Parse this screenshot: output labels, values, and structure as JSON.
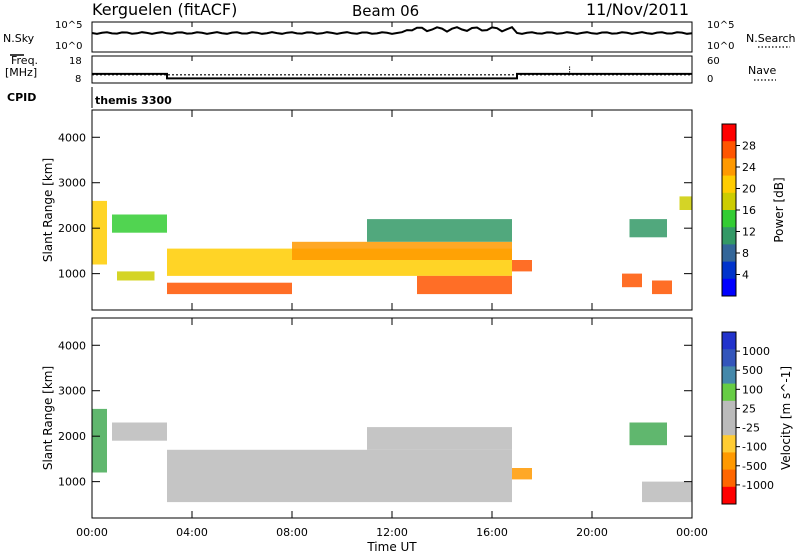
{
  "header": {
    "station": "Kerguelen (fitACF)",
    "beam": "Beam 06",
    "date": "11/Nov/2011"
  },
  "noise_panel": {
    "left_label": "N.Sky",
    "right_label": "N.Search",
    "left_ticks": [
      "10^5",
      "10^0"
    ],
    "right_ticks": [
      "10^5",
      "10^0"
    ]
  },
  "freq_panel": {
    "left_label_1": "Freq.",
    "left_label_2": "[MHz]",
    "right_label": "Nave",
    "left_ticks": [
      "18",
      "8"
    ],
    "right_ticks": [
      "60",
      "0"
    ],
    "freq_segments": [
      {
        "start": 0.0,
        "end": 3.0,
        "value": 12.5
      },
      {
        "start": 3.0,
        "end": 17.0,
        "value": 10.0
      },
      {
        "start": 17.0,
        "end": 24.0,
        "value": 12.5
      }
    ],
    "nave_level": 24
  },
  "cpid": {
    "label": "CPID",
    "value": "themis 3300"
  },
  "x_axis": {
    "title": "Time UT",
    "range_hours": [
      0,
      24
    ],
    "tick_labels": [
      "00:00",
      "04:00",
      "08:00",
      "12:00",
      "16:00",
      "20:00",
      "00:00"
    ]
  },
  "power_panel": {
    "ylabel": "Slant Range [km]",
    "yticks": [
      "1000",
      "2000",
      "3000",
      "4000"
    ],
    "colorbar_label": "Power [dB]",
    "colorbar_ticks": [
      "28",
      "24",
      "20",
      "16",
      "12",
      "8",
      "4"
    ],
    "colorbar_colors": [
      "#ff0000",
      "#ff5500",
      "#ff9900",
      "#ffcc00",
      "#cccc00",
      "#33cc33",
      "#339966",
      "#336699",
      "#0033cc",
      "#0000ff"
    ]
  },
  "velocity_panel": {
    "ylabel": "Slant Range [km]",
    "yticks": [
      "1000",
      "2000",
      "3000",
      "4000"
    ],
    "colorbar_label": "Velocity [m s^-1]",
    "colorbar_ticks": [
      "1000",
      "500",
      "100",
      "25",
      "-25",
      "-100",
      "-500",
      "-1000"
    ],
    "colorbar_colors": [
      "#2233cc",
      "#3355bb",
      "#4488aa",
      "#66cc44",
      "#bbbbbb",
      "#bbbbbb",
      "#ffcc33",
      "#ff9900",
      "#ff6600",
      "#ff0000"
    ]
  },
  "chart_data": {
    "type": "heatmap",
    "title": "Kerguelen (fitACF) Beam 06 11/Nov/2011",
    "xlabel": "Time UT",
    "ylabel": "Slant Range [km]",
    "xlim_hours": [
      0,
      24
    ],
    "ylim_km": [
      200,
      4600
    ],
    "power_regions": [
      {
        "t0": 0.0,
        "t1": 0.6,
        "r0": 1200,
        "r1": 2600,
        "power_db": 20
      },
      {
        "t0": 0.8,
        "t1": 3.0,
        "r0": 1900,
        "r1": 2300,
        "power_db": 16
      },
      {
        "t0": 1.0,
        "t1": 2.5,
        "r0": 850,
        "r1": 1050,
        "power_db": 18
      },
      {
        "t0": 3.0,
        "t1": 8.0,
        "r0": 550,
        "r1": 800,
        "power_db": 28
      },
      {
        "t0": 3.0,
        "t1": 16.8,
        "r0": 950,
        "r1": 1550,
        "power_db": 22
      },
      {
        "t0": 8.0,
        "t1": 16.8,
        "r0": 1300,
        "r1": 1700,
        "power_db": 24
      },
      {
        "t0": 11.0,
        "t1": 16.8,
        "r0": 1700,
        "r1": 2200,
        "power_db": 12
      },
      {
        "t0": 13.0,
        "t1": 16.8,
        "r0": 550,
        "r1": 950,
        "power_db": 28
      },
      {
        "t0": 16.8,
        "t1": 17.6,
        "r0": 1050,
        "r1": 1300,
        "power_db": 26
      },
      {
        "t0": 21.2,
        "t1": 22.0,
        "r0": 700,
        "r1": 1000,
        "power_db": 28
      },
      {
        "t0": 22.4,
        "t1": 23.2,
        "r0": 550,
        "r1": 850,
        "power_db": 28
      },
      {
        "t0": 21.5,
        "t1": 23.0,
        "r0": 1800,
        "r1": 2200,
        "power_db": 12
      },
      {
        "t0": 23.5,
        "t1": 24.0,
        "r0": 2400,
        "r1": 2700,
        "power_db": 18
      }
    ],
    "velocity_regions": [
      {
        "t0": 0.0,
        "t1": 0.6,
        "r0": 1200,
        "r1": 2600,
        "velocity": 100
      },
      {
        "t0": 0.8,
        "t1": 3.0,
        "r0": 1900,
        "r1": 2300,
        "velocity": 0
      },
      {
        "t0": 3.0,
        "t1": 16.8,
        "r0": 550,
        "r1": 1700,
        "velocity": 0
      },
      {
        "t0": 11.0,
        "t1": 16.8,
        "r0": 1700,
        "r1": 2200,
        "velocity": 0
      },
      {
        "t0": 16.8,
        "t1": 17.6,
        "r0": 1050,
        "r1": 1300,
        "velocity": -100
      },
      {
        "t0": 21.5,
        "t1": 23.0,
        "r0": 1800,
        "r1": 2300,
        "velocity": 100
      },
      {
        "t0": 22.0,
        "t1": 24.0,
        "r0": 550,
        "r1": 1000,
        "velocity": 0
      }
    ]
  }
}
